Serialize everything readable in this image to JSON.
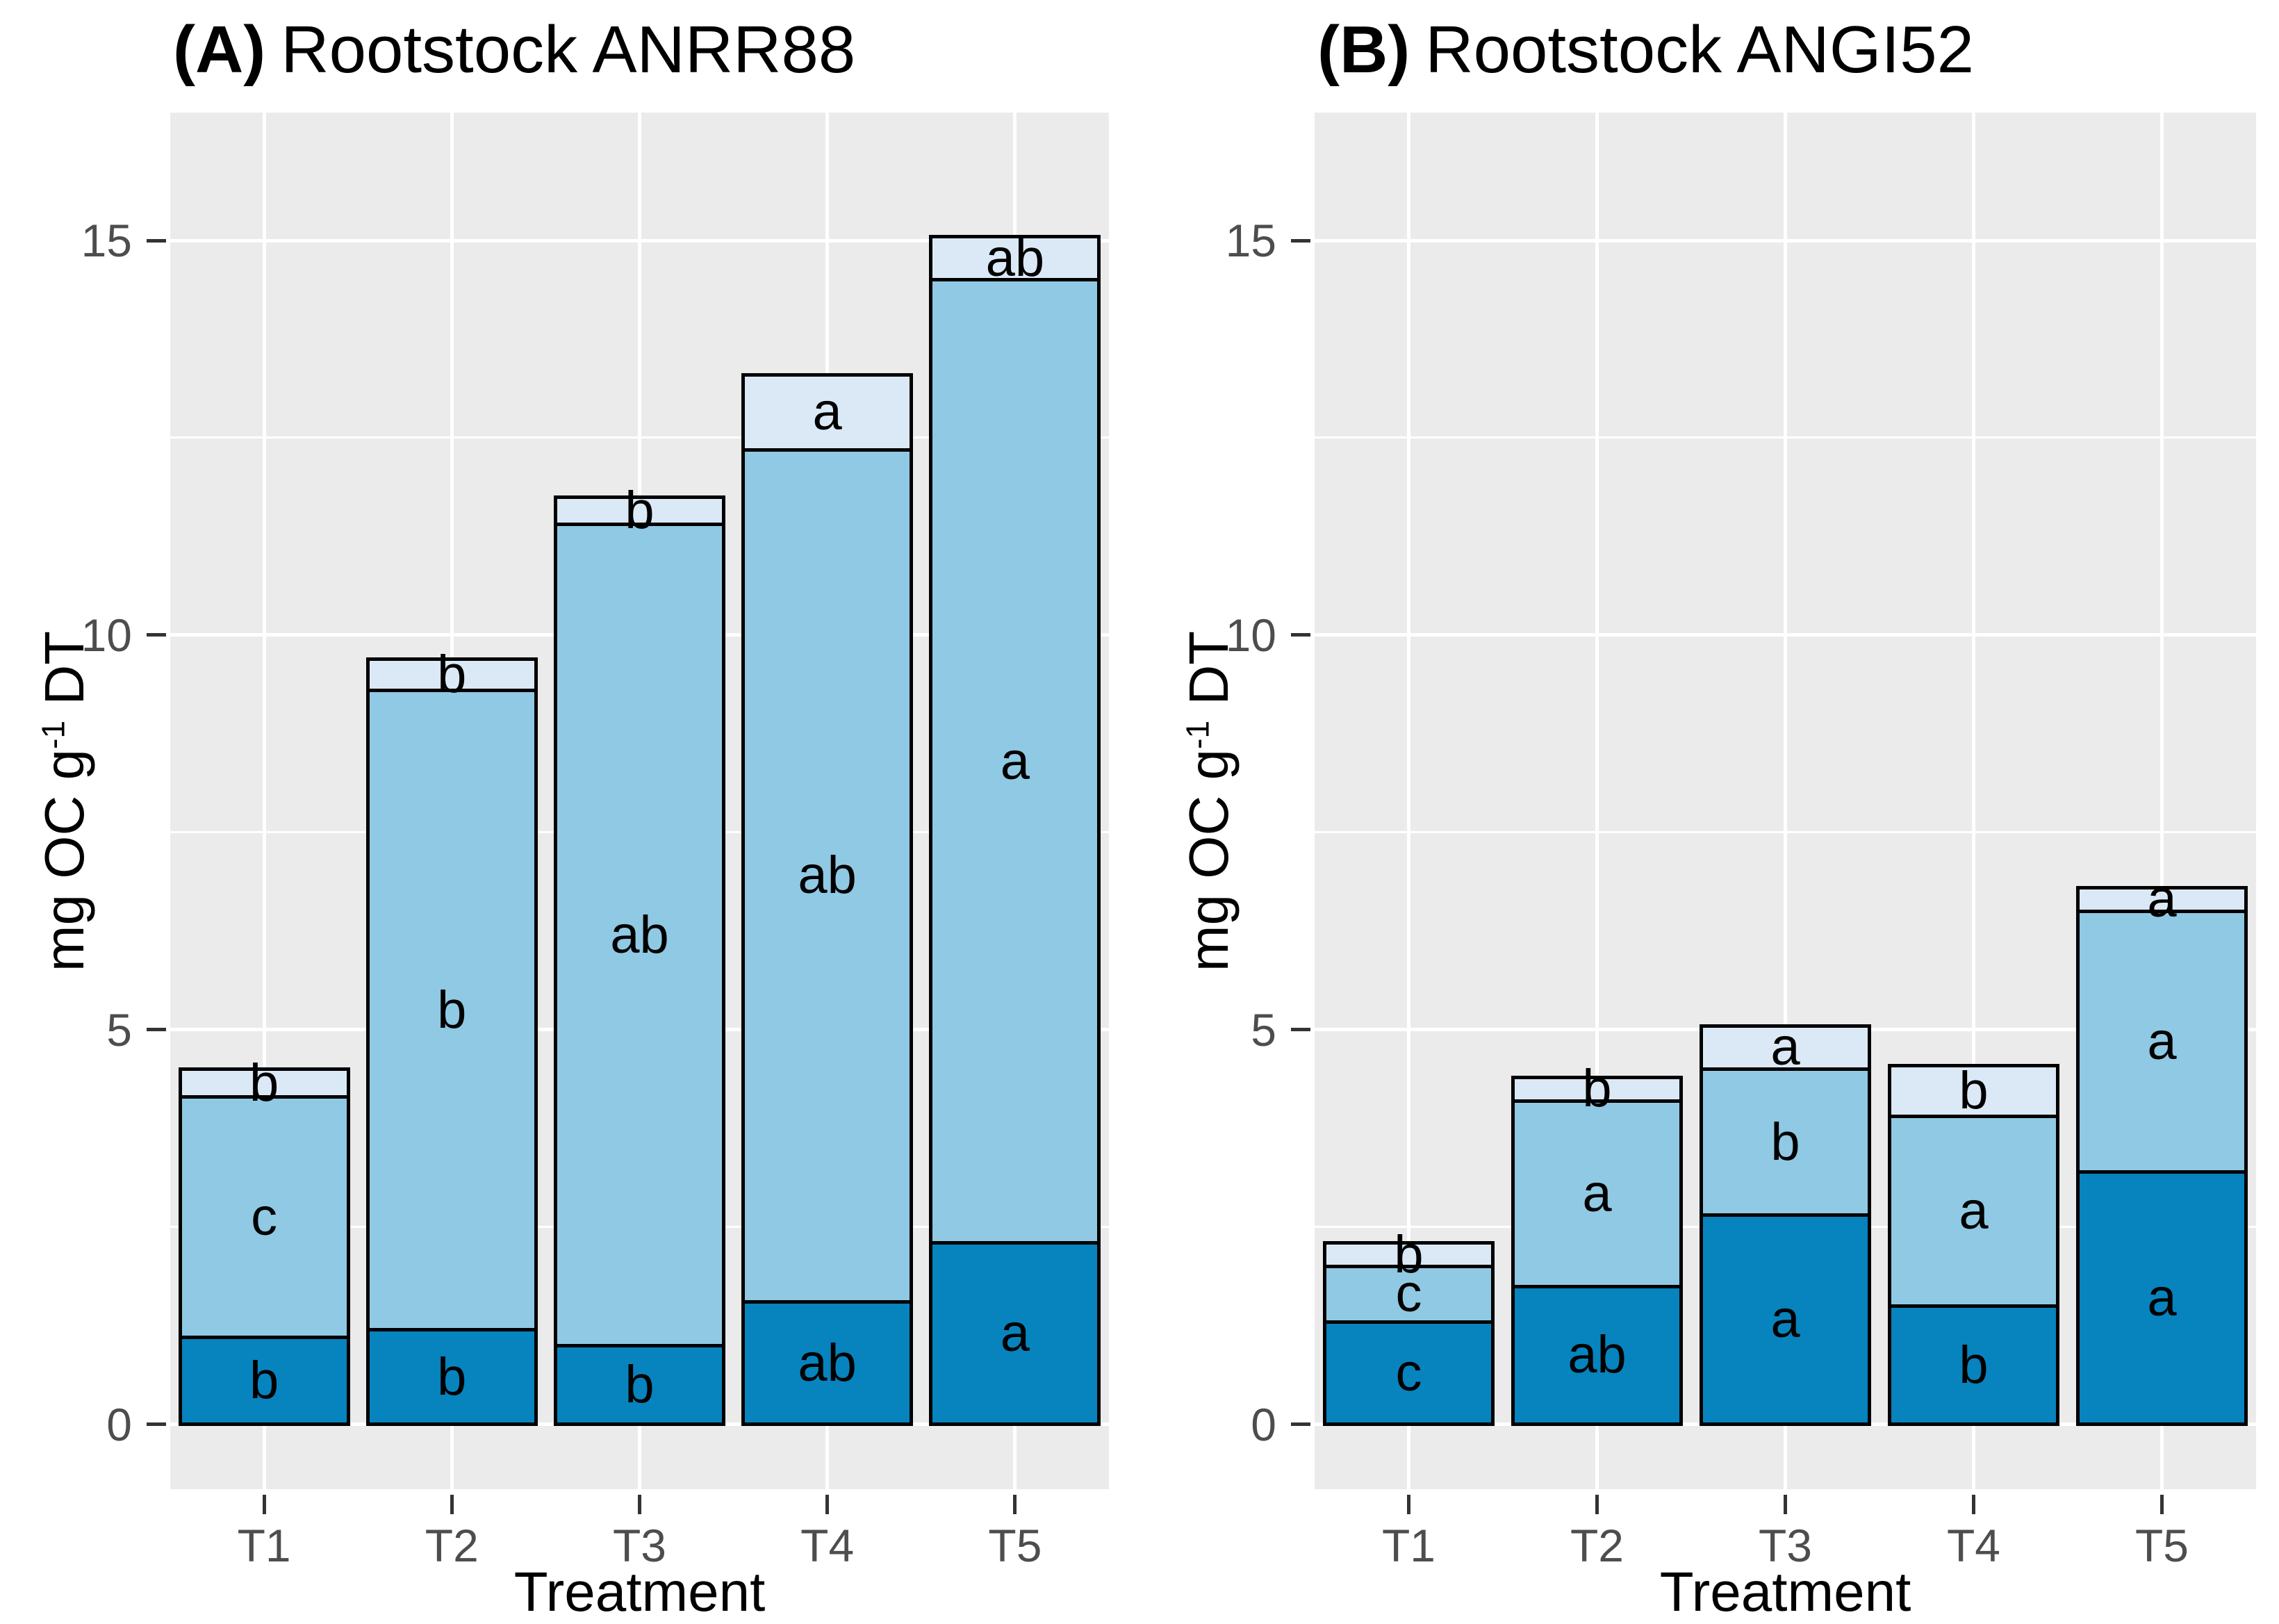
{
  "y_axis_title": {
    "pre": "mg OC g",
    "sup": "-1",
    "post": " DT"
  },
  "chart_data": [
    {
      "type": "bar",
      "stacked": true,
      "tag": "(A)",
      "title_text": "Rootstock ANRR88",
      "title": "(A) Rootstock ANRR88",
      "xlabel": "Treatment",
      "ylabel": "mg OC g-1 DT",
      "categories": [
        "T1",
        "T2",
        "T3",
        "T4",
        "T5"
      ],
      "series": [
        {
          "name": "dark-blue-bottom-layer",
          "color": "#0783be",
          "values": [
            1.1,
            1.2,
            1.0,
            1.55,
            2.3
          ],
          "letters": [
            "b",
            "b",
            "b",
            "ab",
            "a"
          ]
        },
        {
          "name": "light-blue-middle-layer",
          "color": "#90c9e4",
          "values": [
            3.05,
            8.1,
            10.4,
            10.8,
            12.2
          ],
          "letters": [
            "c",
            "b",
            "ab",
            "ab",
            "a"
          ]
        },
        {
          "name": "pale-blue-top-layer",
          "color": "#dbe9f6",
          "values": [
            0.35,
            0.4,
            0.35,
            0.95,
            0.55
          ],
          "letters": [
            "b",
            "b",
            "b",
            "a",
            "ab"
          ]
        }
      ],
      "totals": [
        4.5,
        9.7,
        11.75,
        13.3,
        15.05
      ],
      "yticks": [
        0,
        5,
        10,
        15
      ],
      "yminor": [
        2.5,
        7.5,
        12.5
      ],
      "ylim": [
        0,
        15
      ],
      "grid": true,
      "legend": false
    },
    {
      "type": "bar",
      "stacked": true,
      "tag": "(B)",
      "title_text": "Rootstock ANGI52",
      "title": "(B) Rootstock ANGI52",
      "xlabel": "Treatment",
      "ylabel": "mg OC g-1 DT",
      "categories": [
        "T1",
        "T2",
        "T3",
        "T4",
        "T5"
      ],
      "series": [
        {
          "name": "dark-blue-bottom-layer",
          "color": "#0783be",
          "values": [
            1.3,
            1.75,
            2.65,
            1.5,
            3.2
          ],
          "letters": [
            "c",
            "ab",
            "a",
            "b",
            "a"
          ]
        },
        {
          "name": "light-blue-middle-layer",
          "color": "#90c9e4",
          "values": [
            0.7,
            2.35,
            1.85,
            2.4,
            3.3
          ],
          "letters": [
            "c",
            "a",
            "b",
            "a",
            "a"
          ]
        },
        {
          "name": "pale-blue-top-layer",
          "color": "#dbe9f6",
          "values": [
            0.3,
            0.3,
            0.55,
            0.65,
            0.3
          ],
          "letters": [
            "b",
            "b",
            "a",
            "b",
            "a"
          ]
        }
      ],
      "totals": [
        2.3,
        4.4,
        5.05,
        4.55,
        6.8
      ],
      "yticks": [
        0,
        5,
        10,
        15
      ],
      "yminor": [
        2.5,
        7.5,
        12.5
      ],
      "ylim": [
        0,
        15
      ],
      "grid": true,
      "legend": false
    }
  ],
  "style": {
    "panel_background": "#ebebeb",
    "gridline_color": "#ffffff",
    "bar_border_color": "#000000",
    "tick_text_color": "#4d4d4d",
    "tick_mark_color": "#333333"
  }
}
